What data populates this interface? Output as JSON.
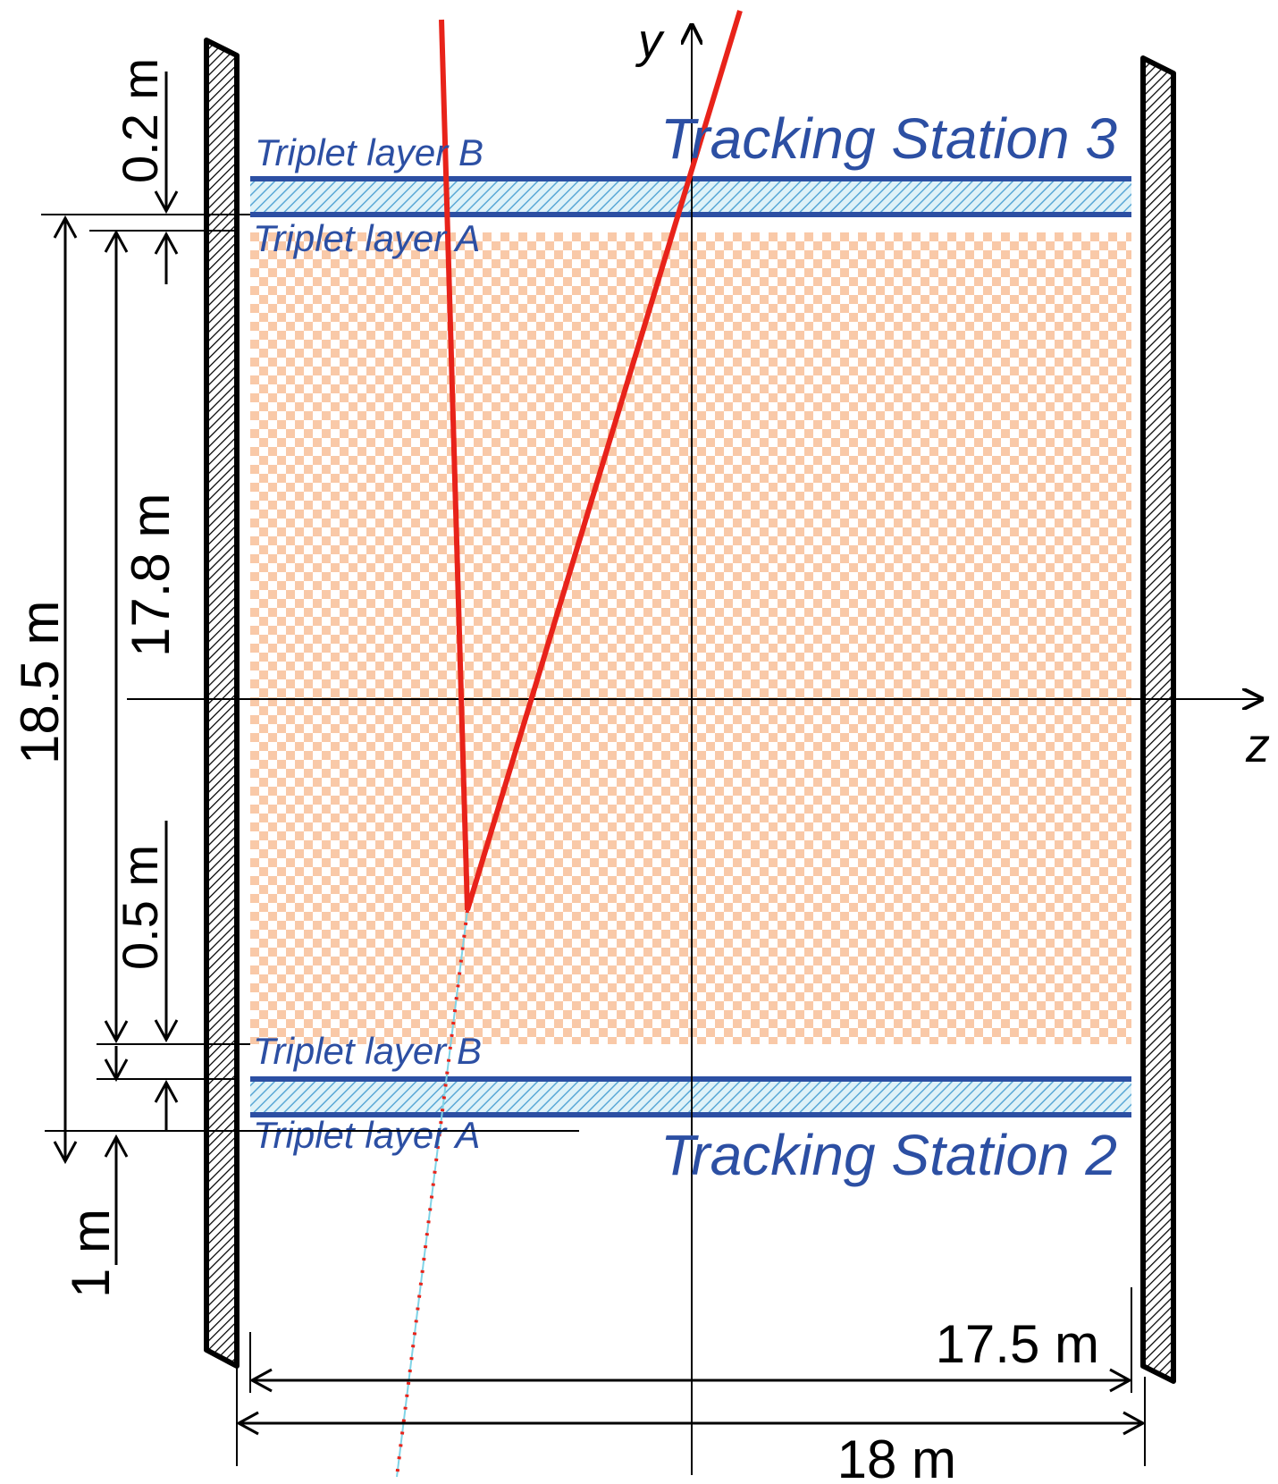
{
  "labels": {
    "station_top": "Tracking Station 3",
    "station_bottom": "Tracking Station 2",
    "top_layer_b": "Triplet layer B",
    "top_layer_a": "Triplet layer A",
    "bottom_layer_b": "Triplet layer B",
    "bottom_layer_a": "Triplet layer A",
    "axis_y": "y",
    "axis_z": "z"
  },
  "dimensions": {
    "gap_top": "0.2 m",
    "inner_height": "17.8 m",
    "outer_height": "18.5 m",
    "gap_bottom": "0.5 m",
    "offset_bottom": "1 m",
    "inner_width": "17.5 m",
    "outer_width": "18 m"
  },
  "colors": {
    "layer_blue": "#2c4fa3",
    "track_red": "#e8231a",
    "fill_orange": "#f9c9a8",
    "hatch_cyan": "#7fd3e6"
  }
}
